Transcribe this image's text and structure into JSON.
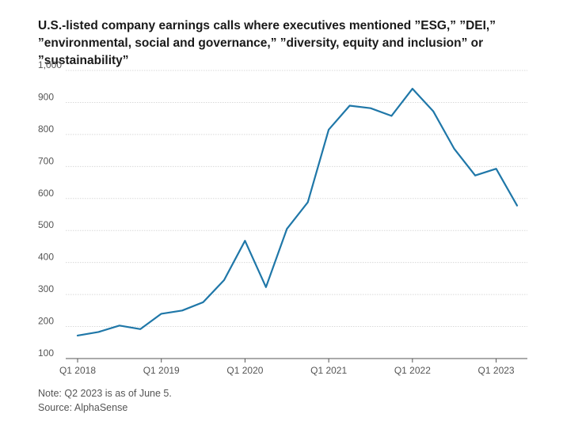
{
  "chart_data": {
    "type": "line",
    "title": "U.S.-listed company earnings calls where executives mentioned ”ESG,” ”DEI,” ”environmental, social and governance,” ”diversity, equity and inclusion” or ”sustainability”",
    "xlabel": "",
    "ylabel": "",
    "ylim": [
      100,
      1000
    ],
    "yticks": [
      100,
      200,
      300,
      400,
      500,
      600,
      700,
      800,
      900,
      1000
    ],
    "ytick_labels": [
      "100",
      "200",
      "300",
      "400",
      "500",
      "600",
      "700",
      "800",
      "900",
      "1,000"
    ],
    "xtick_labels": [
      "Q1 2018",
      "Q1 2019",
      "Q1 2020",
      "Q1 2021",
      "Q1 2022",
      "Q1 2023"
    ],
    "grid": true,
    "line_color": "#1f77a8",
    "series": [
      {
        "x": [
          "Q1 2018",
          "Q2 2018",
          "Q3 2018",
          "Q4 2018",
          "Q1 2019",
          "Q2 2019",
          "Q3 2019",
          "Q4 2019",
          "Q1 2020",
          "Q2 2020",
          "Q3 2020",
          "Q4 2020",
          "Q1 2021",
          "Q2 2021",
          "Q3 2021",
          "Q4 2021",
          "Q1 2022",
          "Q2 2022",
          "Q3 2022",
          "Q4 2022",
          "Q1 2023",
          "Q2 2023"
        ],
        "values": [
          172,
          183,
          203,
          192,
          240,
          250,
          276,
          345,
          468,
          323,
          505,
          588,
          815,
          890,
          882,
          858,
          943,
          872,
          755,
          672,
          693,
          578
        ]
      }
    ]
  },
  "note": "Note: Q2 2023 is as of June 5.",
  "source": "Source: AlphaSense"
}
